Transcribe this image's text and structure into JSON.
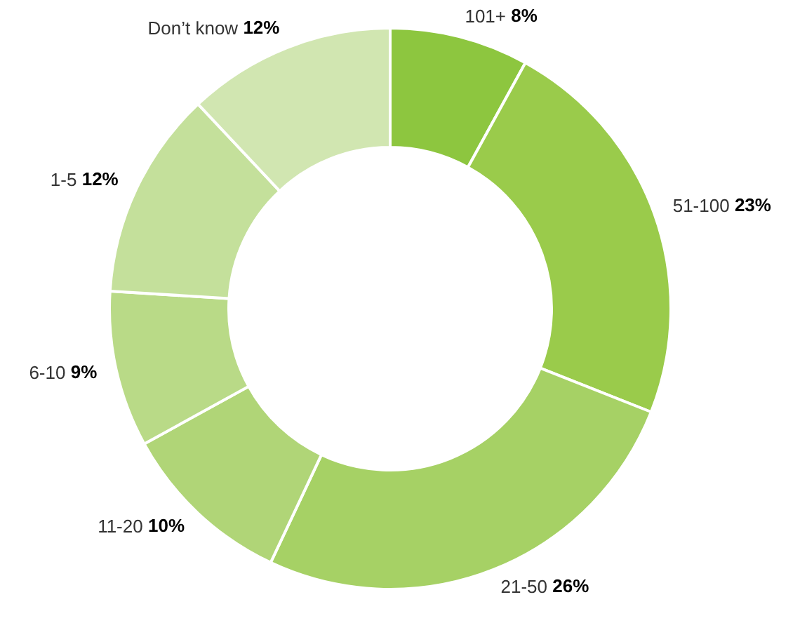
{
  "chart_data": {
    "type": "donut",
    "categories": [
      "101+",
      "51-100",
      "21-50",
      "11-20",
      "6-10",
      "1-5",
      "Don’t know"
    ],
    "values": [
      8,
      23,
      26,
      10,
      9,
      12,
      12
    ],
    "value_labels": [
      "8%",
      "23%",
      "26%",
      "10%",
      "9%",
      "12%",
      "12%"
    ],
    "colors": [
      "#8dc63f",
      "#9acb4b",
      "#a6d165",
      "#b0d577",
      "#b9da87",
      "#c4e09b",
      "#d1e6b1"
    ]
  }
}
